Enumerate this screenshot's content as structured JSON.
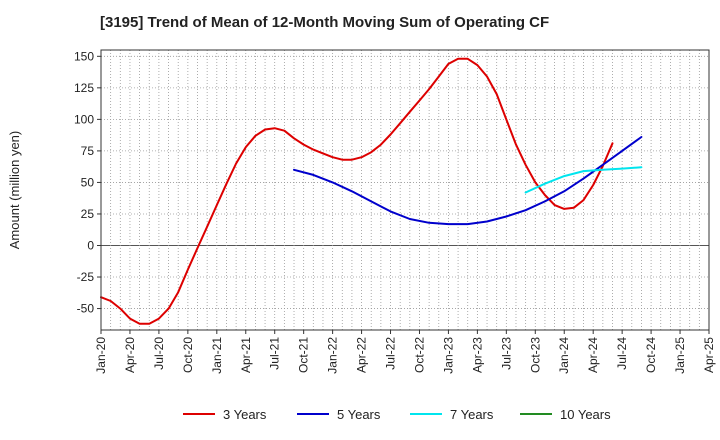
{
  "chart_data": {
    "type": "line",
    "title": "[3195]  Trend of Mean of 12-Month Moving Sum of Operating CF",
    "xlabel": "",
    "ylabel": "Amount (million yen)",
    "ylim": [
      -67,
      155
    ],
    "yticks": [
      150,
      125,
      100,
      75,
      50,
      25,
      0,
      -25,
      -50
    ],
    "x_tick_labels": [
      "Jan-20",
      "Apr-20",
      "Jul-20",
      "Oct-20",
      "Jan-21",
      "Apr-21",
      "Jul-21",
      "Oct-21",
      "Jan-22",
      "Apr-22",
      "Jul-22",
      "Oct-22",
      "Jan-23",
      "Apr-23",
      "Jul-23",
      "Oct-23",
      "Jan-24",
      "Apr-24",
      "Jul-24",
      "Oct-24",
      "Jan-25",
      "Apr-25"
    ],
    "x_unit": "months since Jan-20",
    "xlim": [
      0,
      63
    ],
    "grid": true,
    "legend_position": "bottom",
    "series": [
      {
        "name": "3 Years",
        "color": "#dd0000",
        "x": [
          0,
          1,
          2,
          3,
          4,
          5,
          6,
          7,
          8,
          9,
          10,
          11,
          12,
          13,
          14,
          15,
          16,
          17,
          18,
          19,
          20,
          21,
          22,
          23,
          24,
          25,
          26,
          27,
          28,
          29,
          30,
          31,
          32,
          33,
          34,
          35,
          36,
          37,
          38,
          39,
          40,
          41,
          42,
          43,
          44,
          45,
          46,
          47,
          48,
          49,
          50,
          51,
          52,
          53,
          54,
          55,
          56,
          57
        ],
        "values": [
          -41,
          -44,
          -50,
          -58,
          -62,
          -62,
          -58,
          -50,
          -37,
          -19,
          -2,
          15,
          32,
          49,
          65,
          78,
          87,
          92,
          93,
          91,
          85,
          80,
          76,
          73,
          70,
          68,
          68,
          70,
          74,
          80,
          88,
          97,
          106,
          115,
          124,
          134,
          144,
          148,
          148,
          143,
          134,
          120,
          100,
          80,
          64,
          50,
          40,
          32,
          29,
          30,
          36,
          48,
          63,
          81,
          null,
          null,
          null,
          null
        ]
      },
      {
        "name": "5 Years",
        "color": "#0000cc",
        "x": [
          20,
          22,
          24,
          26,
          28,
          30,
          32,
          34,
          36,
          38,
          40,
          42,
          44,
          46,
          48,
          50,
          52,
          54,
          56,
          57
        ],
        "values": [
          60,
          56,
          50,
          43,
          35,
          27,
          21,
          18,
          17,
          17,
          19,
          23,
          28,
          35,
          43,
          53,
          64,
          75,
          86,
          null
        ]
      },
      {
        "name": "7 Years",
        "color": "#00e5ee",
        "x": [
          44,
          46,
          48,
          50,
          52,
          54,
          56,
          57
        ],
        "values": [
          42,
          49,
          55,
          59,
          60,
          61,
          62,
          null
        ]
      },
      {
        "name": "10 Years",
        "color": "#228b22",
        "x": [],
        "values": []
      }
    ]
  }
}
